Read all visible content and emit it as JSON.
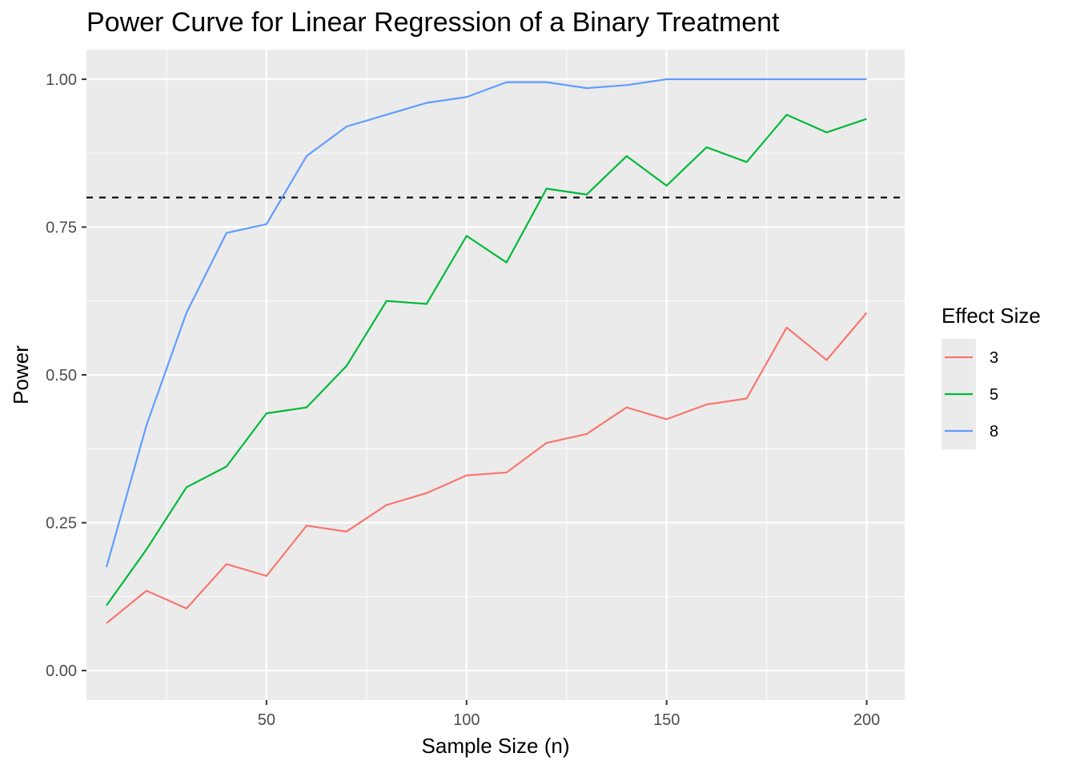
{
  "chart_data": {
    "type": "line",
    "title": "Power Curve for Linear Regression of a Binary Treatment",
    "xlabel": "Sample Size (n)",
    "ylabel": "Power",
    "xlim": [
      5,
      209.5
    ],
    "ylim": [
      -0.05,
      1.05
    ],
    "x_ticks": [
      50,
      100,
      150,
      200
    ],
    "x_tick_labels": [
      "50",
      "100",
      "150",
      "200"
    ],
    "y_ticks": [
      0,
      0.25,
      0.5,
      0.75,
      1.0
    ],
    "y_tick_labels": [
      "0.00",
      "0.25",
      "0.50",
      "0.75",
      "1.00"
    ],
    "grid": true,
    "reference_line": {
      "y": 0.8,
      "style": "dashed",
      "color": "#000000"
    },
    "legend": {
      "title": "Effect Size",
      "position": "right"
    },
    "x": [
      10,
      20,
      30,
      40,
      50,
      60,
      70,
      80,
      90,
      100,
      110,
      120,
      130,
      140,
      150,
      160,
      170,
      180,
      190,
      200
    ],
    "series": [
      {
        "name": "3",
        "color": "#F8766D",
        "values": [
          0.08,
          0.135,
          0.105,
          0.18,
          0.16,
          0.245,
          0.235,
          0.28,
          0.3,
          0.33,
          0.335,
          0.385,
          0.4,
          0.445,
          0.425,
          0.45,
          0.46,
          0.58,
          0.525,
          0.605
        ]
      },
      {
        "name": "5",
        "color": "#00BA38",
        "values": [
          0.11,
          0.205,
          0.31,
          0.345,
          0.435,
          0.445,
          0.515,
          0.625,
          0.62,
          0.735,
          0.69,
          0.815,
          0.805,
          0.87,
          0.82,
          0.885,
          0.86,
          0.94,
          0.91,
          0.933
        ]
      },
      {
        "name": "8",
        "color": "#619CFF",
        "values": [
          0.175,
          0.415,
          0.605,
          0.74,
          0.755,
          0.87,
          0.92,
          0.94,
          0.96,
          0.97,
          0.995,
          0.995,
          0.985,
          0.99,
          1.0,
          1.0,
          1.0,
          1.0,
          1.0,
          1.0
        ]
      }
    ]
  }
}
